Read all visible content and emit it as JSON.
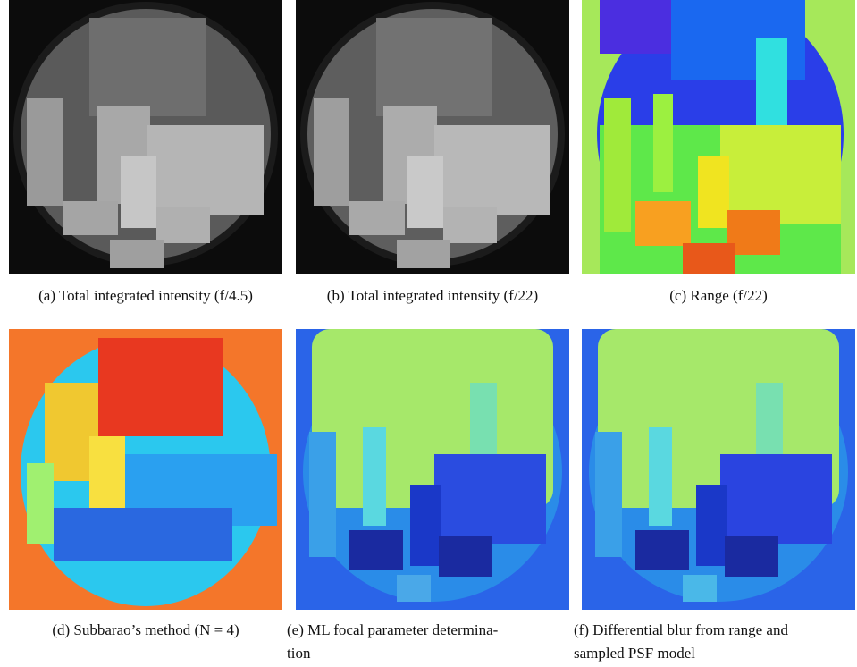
{
  "figure": {
    "panels": [
      {
        "caption": [
          "(a) Total integrated intensity (f/4.5)"
        ]
      },
      {
        "caption": [
          "(b) Total integrated intensity (f/22)"
        ]
      },
      {
        "caption": [
          "(c) Range (f/22)"
        ]
      },
      {
        "caption": [
          "(d) Subbarao’s method (N = 4)"
        ]
      },
      {
        "caption": [
          "(e) ML focal parameter determina-",
          "tion"
        ]
      },
      {
        "caption": [
          "(f) Differential blur from range and",
          "sampled PSF model"
        ]
      }
    ]
  }
}
